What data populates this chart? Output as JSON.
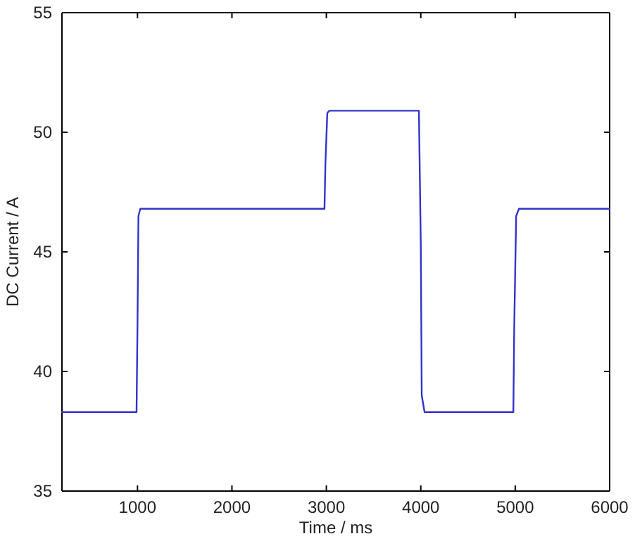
{
  "chart_data": {
    "type": "line",
    "xlabel": "Time / ms",
    "ylabel": "DC Current / A",
    "x": [
      200,
      990,
      1000,
      1010,
      1030,
      2980,
      2990,
      3010,
      3030,
      3980,
      4000,
      4010,
      4040,
      4980,
      4990,
      5010,
      5040,
      6000
    ],
    "series": [
      {
        "color": "#3333cc",
        "values": [
          38.3,
          38.3,
          42,
          46.5,
          46.8,
          46.8,
          48.7,
          50.8,
          50.9,
          50.9,
          45.3,
          39,
          38.3,
          38.3,
          42,
          46.5,
          46.8,
          46.8
        ]
      }
    ],
    "xlim": [
      200,
      6000
    ],
    "xticks": [
      1000,
      2000,
      3000,
      4000,
      5000,
      6000
    ],
    "ylim": [
      35,
      55
    ],
    "yticks": [
      35,
      40,
      45,
      50,
      55
    ],
    "grid": false,
    "marker": "none",
    "line_style": "solid"
  }
}
